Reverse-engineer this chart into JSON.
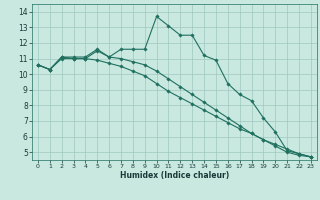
{
  "xlabel": "Humidex (Indice chaleur)",
  "ylabel": "",
  "xlim": [
    -0.5,
    23.5
  ],
  "ylim": [
    4.5,
    14.5
  ],
  "xticks": [
    0,
    1,
    2,
    3,
    4,
    5,
    6,
    7,
    8,
    9,
    10,
    11,
    12,
    13,
    14,
    15,
    16,
    17,
    18,
    19,
    20,
    21,
    22,
    23
  ],
  "yticks": [
    5,
    6,
    7,
    8,
    9,
    10,
    11,
    12,
    13,
    14
  ],
  "bg_color": "#c8e8e0",
  "grid_color": "#a0c8c0",
  "line_color": "#207060",
  "lines": [
    {
      "x": [
        0,
        1,
        2,
        3,
        4,
        5,
        6,
        7,
        8,
        9,
        10,
        11,
        12,
        13,
        14,
        15,
        16,
        17,
        18,
        19,
        20,
        21,
        22,
        23
      ],
      "y": [
        10.6,
        10.3,
        11.1,
        11.1,
        11.1,
        11.6,
        11.1,
        11.6,
        11.6,
        11.6,
        13.7,
        13.1,
        12.5,
        12.5,
        11.2,
        10.9,
        9.4,
        8.7,
        8.3,
        7.2,
        6.3,
        5.1,
        4.9,
        4.7
      ]
    },
    {
      "x": [
        0,
        1,
        2,
        3,
        4,
        5,
        6,
        7,
        8,
        9,
        10,
        11,
        12,
        13,
        14,
        15,
        16,
        17,
        18,
        19,
        20,
        21,
        22,
        23
      ],
      "y": [
        10.6,
        10.3,
        11.1,
        11.0,
        11.0,
        11.5,
        11.1,
        11.0,
        10.8,
        10.6,
        10.2,
        9.7,
        9.2,
        8.7,
        8.2,
        7.7,
        7.2,
        6.7,
        6.2,
        5.8,
        5.4,
        5.0,
        4.8,
        4.7
      ]
    },
    {
      "x": [
        0,
        1,
        2,
        3,
        4,
        5,
        6,
        7,
        8,
        9,
        10,
        11,
        12,
        13,
        14,
        15,
        16,
        17,
        18,
        19,
        20,
        21,
        22,
        23
      ],
      "y": [
        10.6,
        10.3,
        11.0,
        11.0,
        11.0,
        10.9,
        10.7,
        10.5,
        10.2,
        9.9,
        9.4,
        8.9,
        8.5,
        8.1,
        7.7,
        7.3,
        6.9,
        6.5,
        6.2,
        5.8,
        5.5,
        5.2,
        4.9,
        4.7
      ]
    }
  ]
}
